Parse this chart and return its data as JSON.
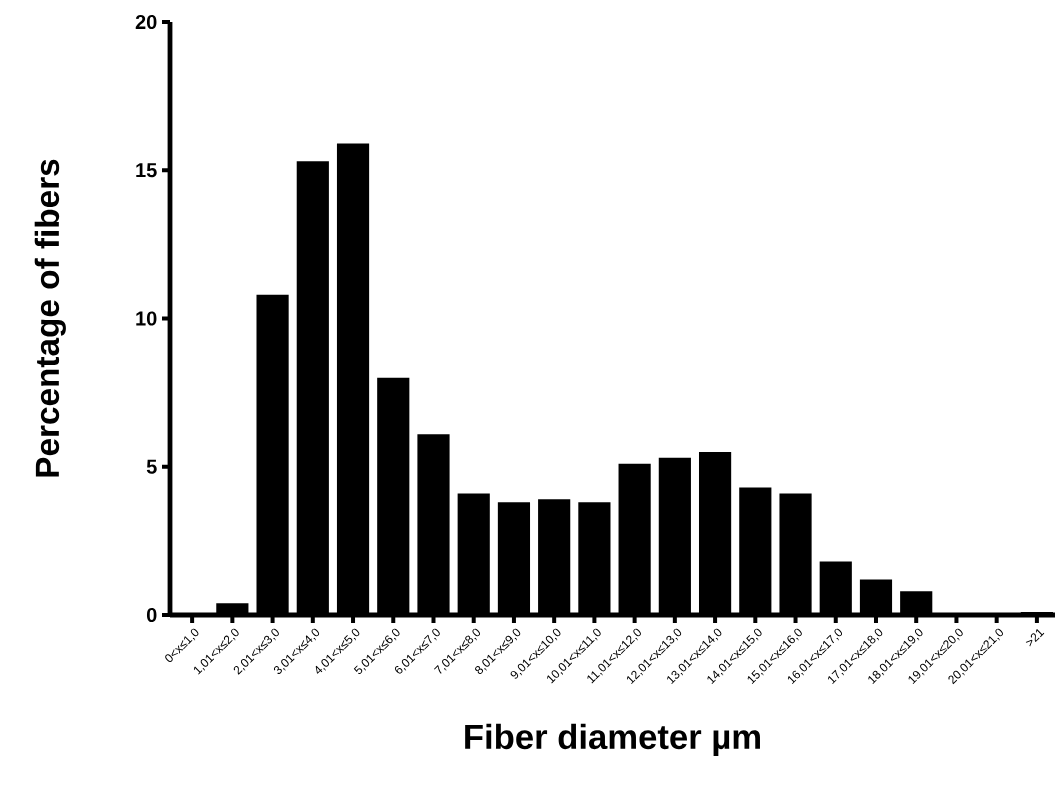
{
  "chart_data": {
    "type": "bar",
    "xlabel": "Fiber diameter µm",
    "ylabel": "Percentage of fibers",
    "categories": [
      "0<x≤1,0",
      "1,01<x≤2,0",
      "2,01<x≤3,0",
      "3,01<x≤4,0",
      "4,01<x≤5,0",
      "5,01<x≤6,0",
      "6,01<x≤7,0",
      "7,01<x≤8,0",
      "8,01<x≤9,0",
      "9,01<x≤10,0",
      "10,01<x≤11,0",
      "11,01<x≤12,0",
      "12,01<x≤13,0",
      "13,01<x≤14,0",
      "14,01<x≤15,0",
      "15,01<x≤16,0",
      "16,01<x≤17,0",
      "17,01<x≤18,0",
      "18,01<x≤19,0",
      "19,01<x≤20,0",
      "20,01<x≤21,0",
      ">21"
    ],
    "values": [
      0,
      0.4,
      10.8,
      15.3,
      15.9,
      8.0,
      6.1,
      4.1,
      3.8,
      3.9,
      3.8,
      5.1,
      5.3,
      5.5,
      4.3,
      4.1,
      1.8,
      1.2,
      0.8,
      0,
      0,
      0.1
    ],
    "color": "#000000",
    "ylim": [
      0,
      20
    ],
    "yticks": [
      0,
      5,
      10,
      15,
      20
    ],
    "grid": false
  }
}
